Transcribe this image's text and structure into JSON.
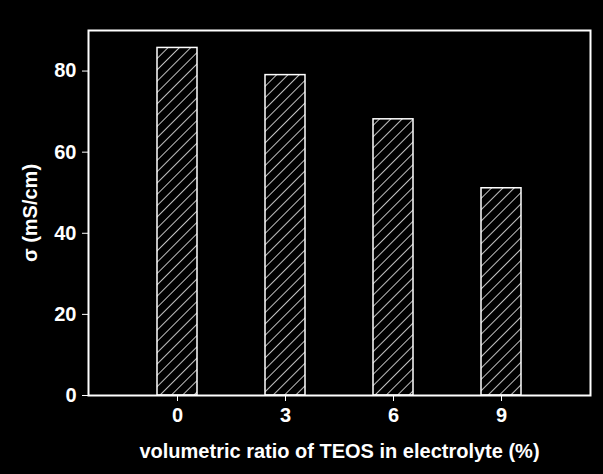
{
  "chart_data": {
    "type": "bar",
    "x_label": "volumetric ratio of TEOS in electrolyte (%)",
    "y_label": "σ (mS/cm)",
    "categories": [
      "0",
      "3",
      "6",
      "9"
    ],
    "values": [
      85.7,
      79,
      68.1,
      51.1
    ],
    "color": "#ffffff",
    "ylim": [
      0,
      90
    ],
    "yticks": [
      0,
      20,
      40,
      60,
      80
    ],
    "grid": false
  }
}
